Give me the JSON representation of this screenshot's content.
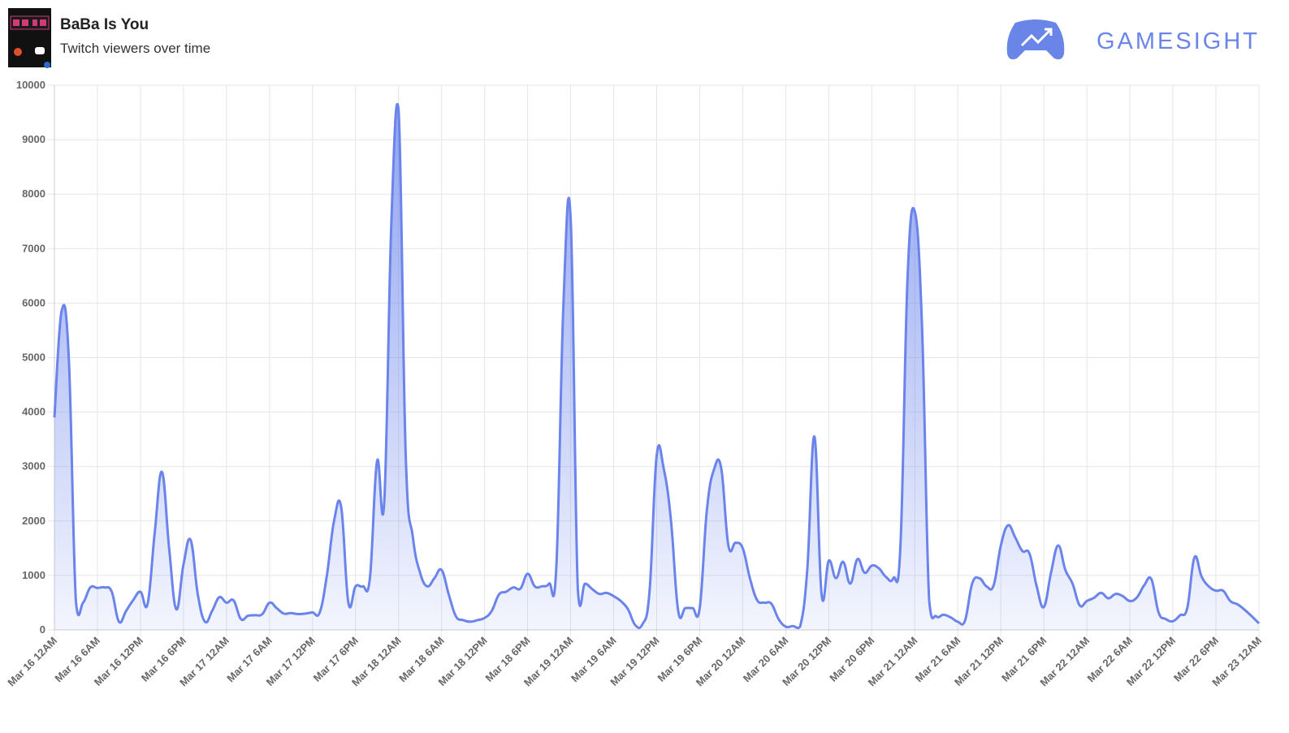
{
  "brand": "GAMESIGHT",
  "chart_data": {
    "type": "area",
    "title": "BaBa Is You",
    "subtitle": "Twitch viewers over time",
    "color": "#6a84ec",
    "grid": true,
    "xlim": [
      0,
      168
    ],
    "ylim": [
      0,
      10000
    ],
    "yticks": [
      0,
      1000,
      2000,
      3000,
      4000,
      5000,
      6000,
      7000,
      8000,
      9000,
      10000
    ],
    "xticks": [
      {
        "value": 0,
        "label": "Mar 16 12AM"
      },
      {
        "value": 6,
        "label": "Mar 16 6AM"
      },
      {
        "value": 12,
        "label": "Mar 16 12PM"
      },
      {
        "value": 18,
        "label": "Mar 16 6PM"
      },
      {
        "value": 24,
        "label": "Mar 17 12AM"
      },
      {
        "value": 30,
        "label": "Mar 17 6AM"
      },
      {
        "value": 36,
        "label": "Mar 17 12PM"
      },
      {
        "value": 42,
        "label": "Mar 17 6PM"
      },
      {
        "value": 48,
        "label": "Mar 18 12AM"
      },
      {
        "value": 54,
        "label": "Mar 18 6AM"
      },
      {
        "value": 60,
        "label": "Mar 18 12PM"
      },
      {
        "value": 66,
        "label": "Mar 18 6PM"
      },
      {
        "value": 72,
        "label": "Mar 19 12AM"
      },
      {
        "value": 78,
        "label": "Mar 19 6AM"
      },
      {
        "value": 84,
        "label": "Mar 19 12PM"
      },
      {
        "value": 90,
        "label": "Mar 19 6PM"
      },
      {
        "value": 96,
        "label": "Mar 20 12AM"
      },
      {
        "value": 102,
        "label": "Mar 20 6AM"
      },
      {
        "value": 108,
        "label": "Mar 20 12PM"
      },
      {
        "value": 114,
        "label": "Mar 20 6PM"
      },
      {
        "value": 120,
        "label": "Mar 21 12AM"
      },
      {
        "value": 126,
        "label": "Mar 21 6AM"
      },
      {
        "value": 132,
        "label": "Mar 21 12PM"
      },
      {
        "value": 138,
        "label": "Mar 21 6PM"
      },
      {
        "value": 144,
        "label": "Mar 22 12AM"
      },
      {
        "value": 150,
        "label": "Mar 22 6AM"
      },
      {
        "value": 156,
        "label": "Mar 22 12PM"
      },
      {
        "value": 162,
        "label": "Mar 22 6PM"
      },
      {
        "value": 168,
        "label": "Mar 23 12AM"
      }
    ],
    "x": [
      0,
      1,
      2,
      3,
      4,
      5,
      6,
      7,
      8,
      9,
      10,
      11,
      12,
      13,
      14,
      15,
      16,
      17,
      18,
      19,
      20,
      21,
      22,
      23,
      24,
      25,
      26,
      27,
      28,
      29,
      30,
      31,
      32,
      33,
      34,
      35,
      36,
      37,
      38,
      39,
      40,
      41,
      42,
      43,
      44,
      45,
      46,
      47,
      48,
      49,
      50,
      51,
      52,
      53,
      54,
      55,
      56,
      57,
      58,
      59,
      60,
      61,
      62,
      63,
      64,
      65,
      66,
      67,
      68,
      69,
      70,
      71,
      72,
      73,
      74,
      75,
      76,
      77,
      78,
      79,
      80,
      81,
      82,
      83,
      84,
      85,
      86,
      87,
      88,
      89,
      90,
      91,
      92,
      93,
      94,
      95,
      96,
      97,
      98,
      99,
      100,
      101,
      102,
      103,
      104,
      105,
      106,
      107,
      108,
      109,
      110,
      111,
      112,
      113,
      114,
      115,
      116,
      117,
      118,
      119,
      120,
      121,
      122,
      123,
      124,
      125,
      126,
      127,
      128,
      129,
      130,
      131,
      132,
      133,
      134,
      135,
      136,
      137,
      138,
      139,
      140,
      141,
      142,
      143,
      144,
      145,
      146,
      147,
      148,
      149,
      150,
      151,
      152,
      153,
      154,
      155,
      156,
      157,
      158,
      159,
      160,
      161,
      162,
      163,
      164,
      165,
      166,
      167,
      168
    ],
    "values": [
      3900,
      5850,
      5000,
      520,
      500,
      780,
      770,
      780,
      700,
      150,
      350,
      550,
      700,
      480,
      1800,
      2900,
      1500,
      380,
      1200,
      1650,
      650,
      150,
      350,
      600,
      500,
      540,
      200,
      260,
      270,
      290,
      500,
      400,
      300,
      310,
      290,
      300,
      320,
      320,
      1000,
      2000,
      2250,
      500,
      800,
      800,
      950,
      3100,
      2350,
      7500,
      9550,
      3200,
      1700,
      1050,
      800,
      950,
      1100,
      650,
      250,
      180,
      150,
      180,
      220,
      350,
      650,
      700,
      780,
      760,
      1030,
      800,
      800,
      850,
      1150,
      6000,
      7550,
      750,
      850,
      750,
      660,
      680,
      620,
      530,
      380,
      90,
      100,
      700,
      3200,
      2950,
      2000,
      350,
      400,
      400,
      400,
      2200,
      2950,
      2970,
      1550,
      1600,
      1500,
      950,
      550,
      500,
      480,
      200,
      60,
      70,
      60,
      1100,
      3550,
      650,
      1270,
      950,
      1250,
      850,
      1300,
      1050,
      1180,
      1130,
      970,
      950,
      1550,
      6500,
      7680,
      5600,
      550,
      250,
      280,
      230,
      150,
      170,
      850,
      950,
      800,
      820,
      1550,
      1920,
      1700,
      1450,
      1400,
      800,
      420,
      1050,
      1550,
      1100,
      850,
      450,
      530,
      590,
      680,
      580,
      660,
      620,
      530,
      600,
      820,
      930,
      320,
      200,
      160,
      270,
      400,
      1330,
      980,
      800,
      720,
      720,
      530,
      470,
      370,
      250,
      120
    ]
  }
}
